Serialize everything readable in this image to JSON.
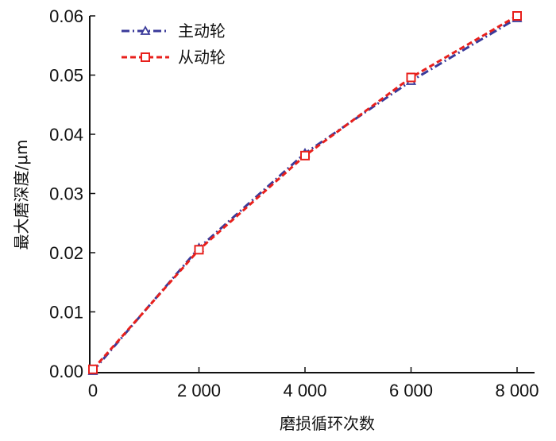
{
  "chart_data": {
    "type": "line",
    "title": "",
    "xlabel": "磨损循环次数",
    "ylabel": "最大磨深度/μm",
    "x": [
      0,
      2000,
      4000,
      6000,
      8000
    ],
    "x_tick_labels": [
      "0",
      "2 000",
      "4 000",
      "6 000",
      "8 000"
    ],
    "y_tick_labels": [
      "0.00",
      "0.01",
      "0.02",
      "0.03",
      "0.04",
      "0.05",
      "0.06"
    ],
    "xlim": [
      0,
      8000
    ],
    "ylim": [
      0,
      0.06
    ],
    "y_ticks": [
      0,
      0.01,
      0.02,
      0.03,
      0.04,
      0.05,
      0.06
    ],
    "grid": false,
    "legend_position": "top-left",
    "series": [
      {
        "name": "主动轮",
        "values": [
          0.0,
          0.0208,
          0.0368,
          0.049,
          0.0596
        ],
        "color": "#3a3a9a",
        "marker": "triangle",
        "line_style": "dash-dot"
      },
      {
        "name": "从动轮",
        "values": [
          0.0003,
          0.0205,
          0.0364,
          0.0496,
          0.06
        ],
        "color": "#e8201c",
        "marker": "square",
        "line_style": "dashed"
      }
    ]
  }
}
